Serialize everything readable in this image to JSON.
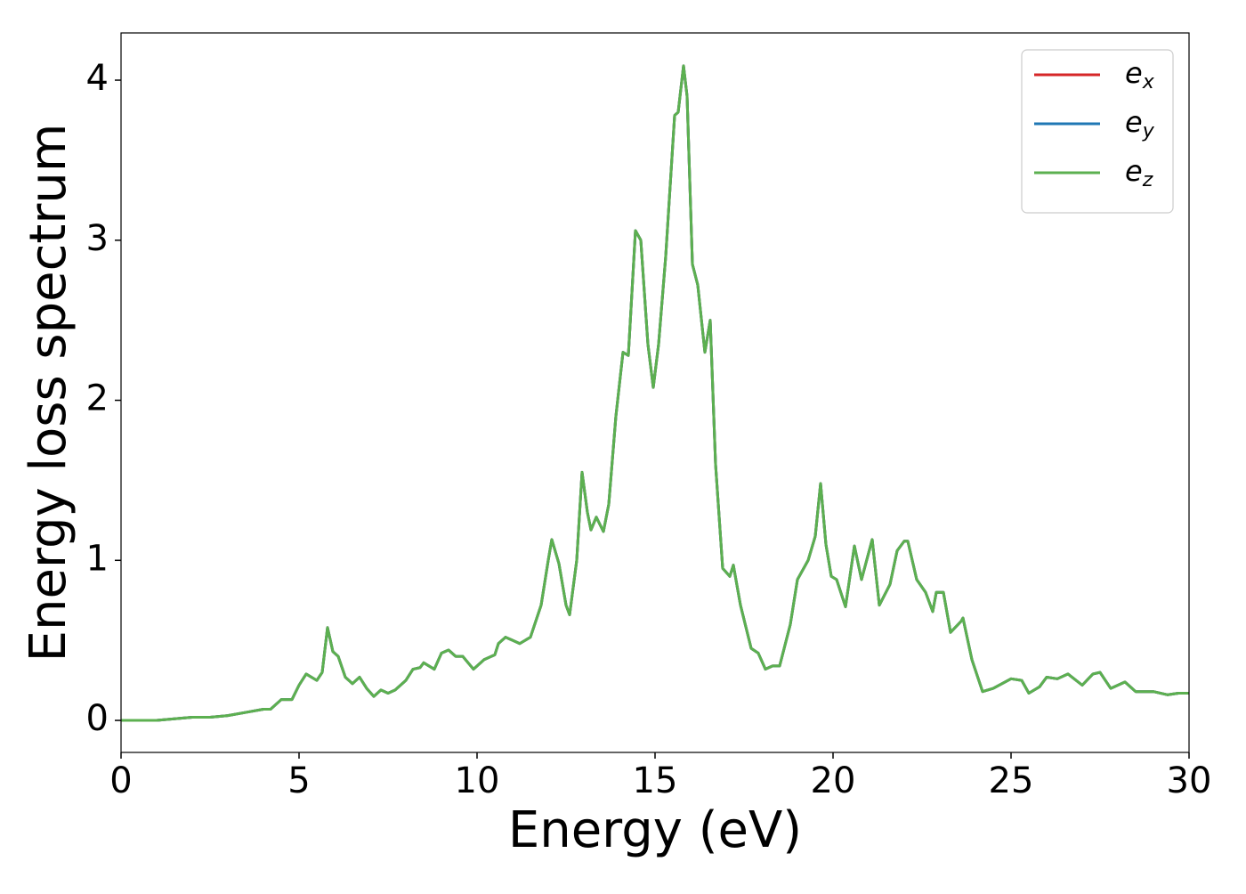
{
  "chart_data": {
    "type": "line",
    "x_label": "Energy (eV)",
    "y_label": "Energy loss spectrum",
    "x": [
      0,
      1,
      1.5,
      2,
      2.5,
      3,
      3.5,
      4,
      4.2,
      4.5,
      4.8,
      5.0,
      5.2,
      5.5,
      5.65,
      5.8,
      5.95,
      6.1,
      6.3,
      6.5,
      6.7,
      6.9,
      7.1,
      7.3,
      7.5,
      7.7,
      8.0,
      8.2,
      8.4,
      8.5,
      8.8,
      9.0,
      9.2,
      9.4,
      9.6,
      9.9,
      10.2,
      10.5,
      10.6,
      10.8,
      11.0,
      11.2,
      11.5,
      11.8,
      12.0,
      12.1,
      12.3,
      12.5,
      12.6,
      12.8,
      12.95,
      13.1,
      13.2,
      13.35,
      13.55,
      13.7,
      13.9,
      14.1,
      14.25,
      14.45,
      14.6,
      14.8,
      14.95,
      15.1,
      15.3,
      15.55,
      15.65,
      15.8,
      15.9,
      16.05,
      16.2,
      16.4,
      16.55,
      16.7,
      16.9,
      17.1,
      17.2,
      17.4,
      17.7,
      17.9,
      18.1,
      18.3,
      18.5,
      18.8,
      19.0,
      19.3,
      19.5,
      19.65,
      19.8,
      19.95,
      20.1,
      20.35,
      20.6,
      20.8,
      21.1,
      21.3,
      21.6,
      21.8,
      22.0,
      22.1,
      22.35,
      22.6,
      22.8,
      22.9,
      23.1,
      23.3,
      23.6,
      23.65,
      23.9,
      24.2,
      24.5,
      25.0,
      25.3,
      25.5,
      25.8,
      26.0,
      26.3,
      26.6,
      27.0,
      27.3,
      27.5,
      27.8,
      28.2,
      28.5,
      29.0,
      29.4,
      29.7,
      30.0
    ],
    "series": [
      {
        "name": "ex",
        "color": "#d62728",
        "values": [
          0,
          0,
          0.01,
          0.02,
          0.02,
          0.03,
          0.05,
          0.07,
          0.07,
          0.13,
          0.13,
          0.22,
          0.29,
          0.25,
          0.3,
          0.58,
          0.43,
          0.4,
          0.27,
          0.23,
          0.27,
          0.2,
          0.15,
          0.19,
          0.17,
          0.19,
          0.25,
          0.32,
          0.33,
          0.36,
          0.32,
          0.42,
          0.44,
          0.4,
          0.4,
          0.32,
          0.38,
          0.41,
          0.48,
          0.52,
          0.5,
          0.48,
          0.52,
          0.72,
          1.0,
          1.13,
          0.98,
          0.72,
          0.66,
          1.0,
          1.55,
          1.3,
          1.19,
          1.27,
          1.18,
          1.35,
          1.9,
          2.3,
          2.28,
          3.06,
          3.0,
          2.35,
          2.08,
          2.35,
          2.9,
          3.78,
          3.8,
          4.09,
          3.9,
          2.85,
          2.72,
          2.3,
          2.5,
          1.6,
          0.95,
          0.9,
          0.97,
          0.72,
          0.45,
          0.42,
          0.32,
          0.34,
          0.34,
          0.6,
          0.88,
          1.0,
          1.15,
          1.48,
          1.1,
          0.9,
          0.88,
          0.71,
          1.09,
          0.88,
          1.13,
          0.72,
          0.85,
          1.06,
          1.12,
          1.12,
          0.88,
          0.8,
          0.68,
          0.8,
          0.8,
          0.55,
          0.62,
          0.64,
          0.38,
          0.18,
          0.2,
          0.26,
          0.25,
          0.17,
          0.21,
          0.27,
          0.26,
          0.29,
          0.22,
          0.29,
          0.3,
          0.2,
          0.24,
          0.18,
          0.18,
          0.16,
          0.17,
          0.17
        ]
      },
      {
        "name": "ey",
        "color": "#1f77b4",
        "values": [
          0,
          0,
          0.01,
          0.02,
          0.02,
          0.03,
          0.05,
          0.07,
          0.07,
          0.13,
          0.13,
          0.22,
          0.29,
          0.25,
          0.3,
          0.58,
          0.43,
          0.4,
          0.27,
          0.23,
          0.27,
          0.2,
          0.15,
          0.19,
          0.17,
          0.19,
          0.25,
          0.32,
          0.33,
          0.36,
          0.32,
          0.42,
          0.44,
          0.4,
          0.4,
          0.32,
          0.38,
          0.41,
          0.48,
          0.52,
          0.5,
          0.48,
          0.52,
          0.72,
          1.0,
          1.13,
          0.98,
          0.72,
          0.66,
          1.0,
          1.55,
          1.3,
          1.19,
          1.27,
          1.18,
          1.35,
          1.9,
          2.3,
          2.28,
          3.06,
          3.0,
          2.35,
          2.08,
          2.35,
          2.9,
          3.78,
          3.8,
          4.09,
          3.9,
          2.85,
          2.72,
          2.3,
          2.5,
          1.6,
          0.95,
          0.9,
          0.97,
          0.72,
          0.45,
          0.42,
          0.32,
          0.34,
          0.34,
          0.6,
          0.88,
          1.0,
          1.15,
          1.48,
          1.1,
          0.9,
          0.88,
          0.71,
          1.09,
          0.88,
          1.13,
          0.72,
          0.85,
          1.06,
          1.12,
          1.12,
          0.88,
          0.8,
          0.68,
          0.8,
          0.8,
          0.55,
          0.62,
          0.64,
          0.38,
          0.18,
          0.2,
          0.26,
          0.25,
          0.17,
          0.21,
          0.27,
          0.26,
          0.29,
          0.22,
          0.29,
          0.3,
          0.2,
          0.24,
          0.18,
          0.18,
          0.16,
          0.17,
          0.17
        ]
      },
      {
        "name": "ez",
        "color": "#5cb050",
        "values": [
          0,
          0,
          0.01,
          0.02,
          0.02,
          0.03,
          0.05,
          0.07,
          0.07,
          0.13,
          0.13,
          0.22,
          0.29,
          0.25,
          0.3,
          0.58,
          0.43,
          0.4,
          0.27,
          0.23,
          0.27,
          0.2,
          0.15,
          0.19,
          0.17,
          0.19,
          0.25,
          0.32,
          0.33,
          0.36,
          0.32,
          0.42,
          0.44,
          0.4,
          0.4,
          0.32,
          0.38,
          0.41,
          0.48,
          0.52,
          0.5,
          0.48,
          0.52,
          0.72,
          1.0,
          1.13,
          0.98,
          0.72,
          0.66,
          1.0,
          1.55,
          1.3,
          1.19,
          1.27,
          1.18,
          1.35,
          1.9,
          2.3,
          2.28,
          3.06,
          3.0,
          2.35,
          2.08,
          2.35,
          2.9,
          3.78,
          3.8,
          4.09,
          3.9,
          2.85,
          2.72,
          2.3,
          2.5,
          1.6,
          0.95,
          0.9,
          0.97,
          0.72,
          0.45,
          0.42,
          0.32,
          0.34,
          0.34,
          0.6,
          0.88,
          1.0,
          1.15,
          1.48,
          1.1,
          0.9,
          0.88,
          0.71,
          1.09,
          0.88,
          1.13,
          0.72,
          0.85,
          1.06,
          1.12,
          1.12,
          0.88,
          0.8,
          0.68,
          0.8,
          0.8,
          0.55,
          0.62,
          0.64,
          0.38,
          0.18,
          0.2,
          0.26,
          0.25,
          0.17,
          0.21,
          0.27,
          0.26,
          0.29,
          0.22,
          0.29,
          0.3,
          0.2,
          0.24,
          0.18,
          0.18,
          0.16,
          0.17,
          0.17
        ]
      }
    ],
    "xlim": [
      0,
      30
    ],
    "xticks": [
      0,
      5,
      10,
      15,
      20,
      25,
      30
    ],
    "ylim": [
      -0.2,
      4.295
    ],
    "yticks": [
      0,
      1,
      2,
      3,
      4
    ],
    "grid": false,
    "legend": "upper right"
  }
}
